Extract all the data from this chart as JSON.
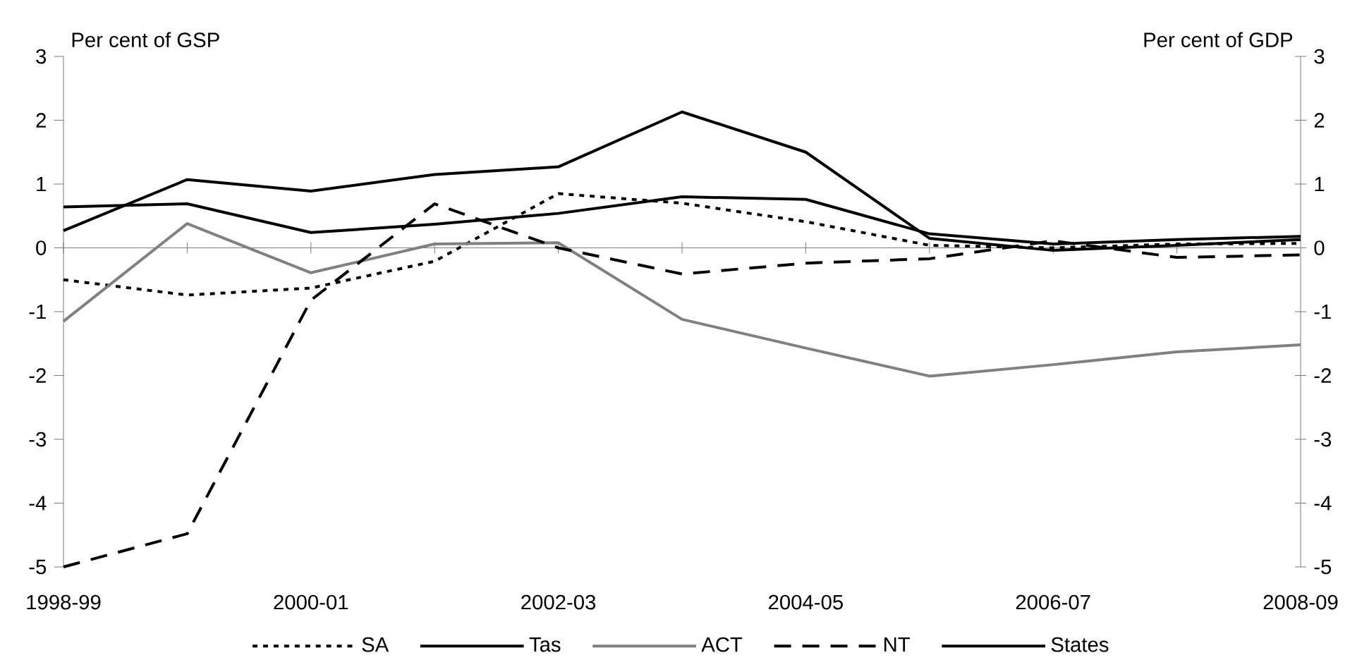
{
  "chart_data": {
    "type": "line",
    "categories": [
      "1998-99",
      null,
      "2000-01",
      null,
      "2002-03",
      null,
      "2004-05",
      null,
      "2006-07",
      null,
      "2008-09"
    ],
    "ylabel": "Per cent of GSP",
    "y2label": "Per cent of GDP",
    "ylim": [
      -5,
      3
    ],
    "yticks": [
      -5,
      -4,
      -3,
      -2,
      -1,
      0,
      1,
      2,
      3
    ],
    "y2lim": [
      -5,
      3
    ],
    "y2ticks": [
      -5,
      -4,
      -3,
      -2,
      -1,
      0,
      1,
      2,
      3
    ],
    "legend": "bottom",
    "series": [
      {
        "name": "SA",
        "color": "#000000",
        "line_style": "dotted",
        "values": [
          -0.5,
          -0.74,
          -0.63,
          -0.21,
          0.85,
          0.7,
          0.41,
          0.04,
          0.0,
          0.06,
          0.07
        ]
      },
      {
        "name": "Tas",
        "color": "#000000",
        "line_style": "solid",
        "values": [
          0.27,
          1.07,
          0.89,
          1.15,
          1.27,
          2.13,
          1.5,
          0.15,
          -0.04,
          0.04,
          0.13
        ]
      },
      {
        "name": "ACT",
        "color": "#808080",
        "line_style": "solid",
        "values": [
          -1.15,
          0.38,
          -0.39,
          0.06,
          0.08,
          -1.12,
          -1.57,
          -2.01,
          -1.83,
          -1.63,
          -1.52
        ]
      },
      {
        "name": "NT",
        "color": "#000000",
        "line_style": "dashed",
        "values": [
          -5.0,
          -4.48,
          -0.82,
          0.69,
          0.0,
          -0.41,
          -0.24,
          -0.17,
          0.11,
          -0.15,
          -0.11
        ]
      },
      {
        "name": "States",
        "color": "#000000",
        "line_style": "solid",
        "values": [
          0.64,
          0.69,
          0.24,
          0.37,
          0.54,
          0.8,
          0.76,
          0.22,
          0.06,
          0.13,
          0.18
        ]
      }
    ]
  }
}
